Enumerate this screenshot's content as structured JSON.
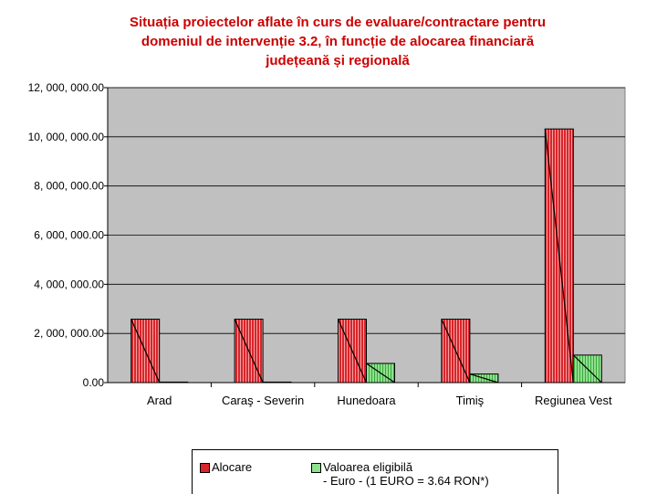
{
  "title_lines": [
    "Situația proiectelor aflate în curs de evaluare/contractare pentru",
    "domeniul de intervenție 3.2, în funcție de alocarea financiară",
    "județeană și regională"
  ],
  "colors": {
    "title": "#cc0000",
    "plot_bg": "#c0c0c0",
    "alocare": "#d8252b",
    "alocare_stripe": "#f4a0a0",
    "eligibila": "#8fe08f",
    "eligibila_stripe": "#3aa83a"
  },
  "chart_data": {
    "type": "bar",
    "title": "Situația proiectelor aflate în curs de evaluare/contractare pentru domeniul de intervenție 3.2, în funcție de alocarea financiară județeană și regională",
    "categories": [
      "Arad",
      "Caraş - Severin",
      "Hunedoara",
      "Timiş",
      "Regiunea Vest"
    ],
    "series": [
      {
        "name": "Alocare",
        "values": [
          2580000,
          2580000,
          2580000,
          2580000,
          10320000
        ]
      },
      {
        "name": "Valoarea eligibilă - Euro - (1 EURO = 3.64 RON*)",
        "values": [
          0,
          0,
          780000,
          350000,
          1120000
        ]
      }
    ],
    "ylim": [
      0,
      12000000
    ],
    "yticks": [
      0,
      2000000,
      4000000,
      6000000,
      8000000,
      10000000,
      12000000
    ],
    "ytick_labels": [
      "0.00",
      "2, 000, 000.00",
      "4, 000, 000.00",
      "6, 000, 000.00",
      "8, 000, 000.00",
      "10, 000, 000.00",
      "12, 000, 000.00"
    ],
    "xlabel": "",
    "ylabel": "",
    "grid": true,
    "legend": "bottom"
  },
  "legend": {
    "items": [
      {
        "label": "Alocare"
      },
      {
        "label": "Valoarea eligibilă",
        "label_line2": "- Euro - (1 EURO = 3.64 RON*)"
      }
    ]
  }
}
